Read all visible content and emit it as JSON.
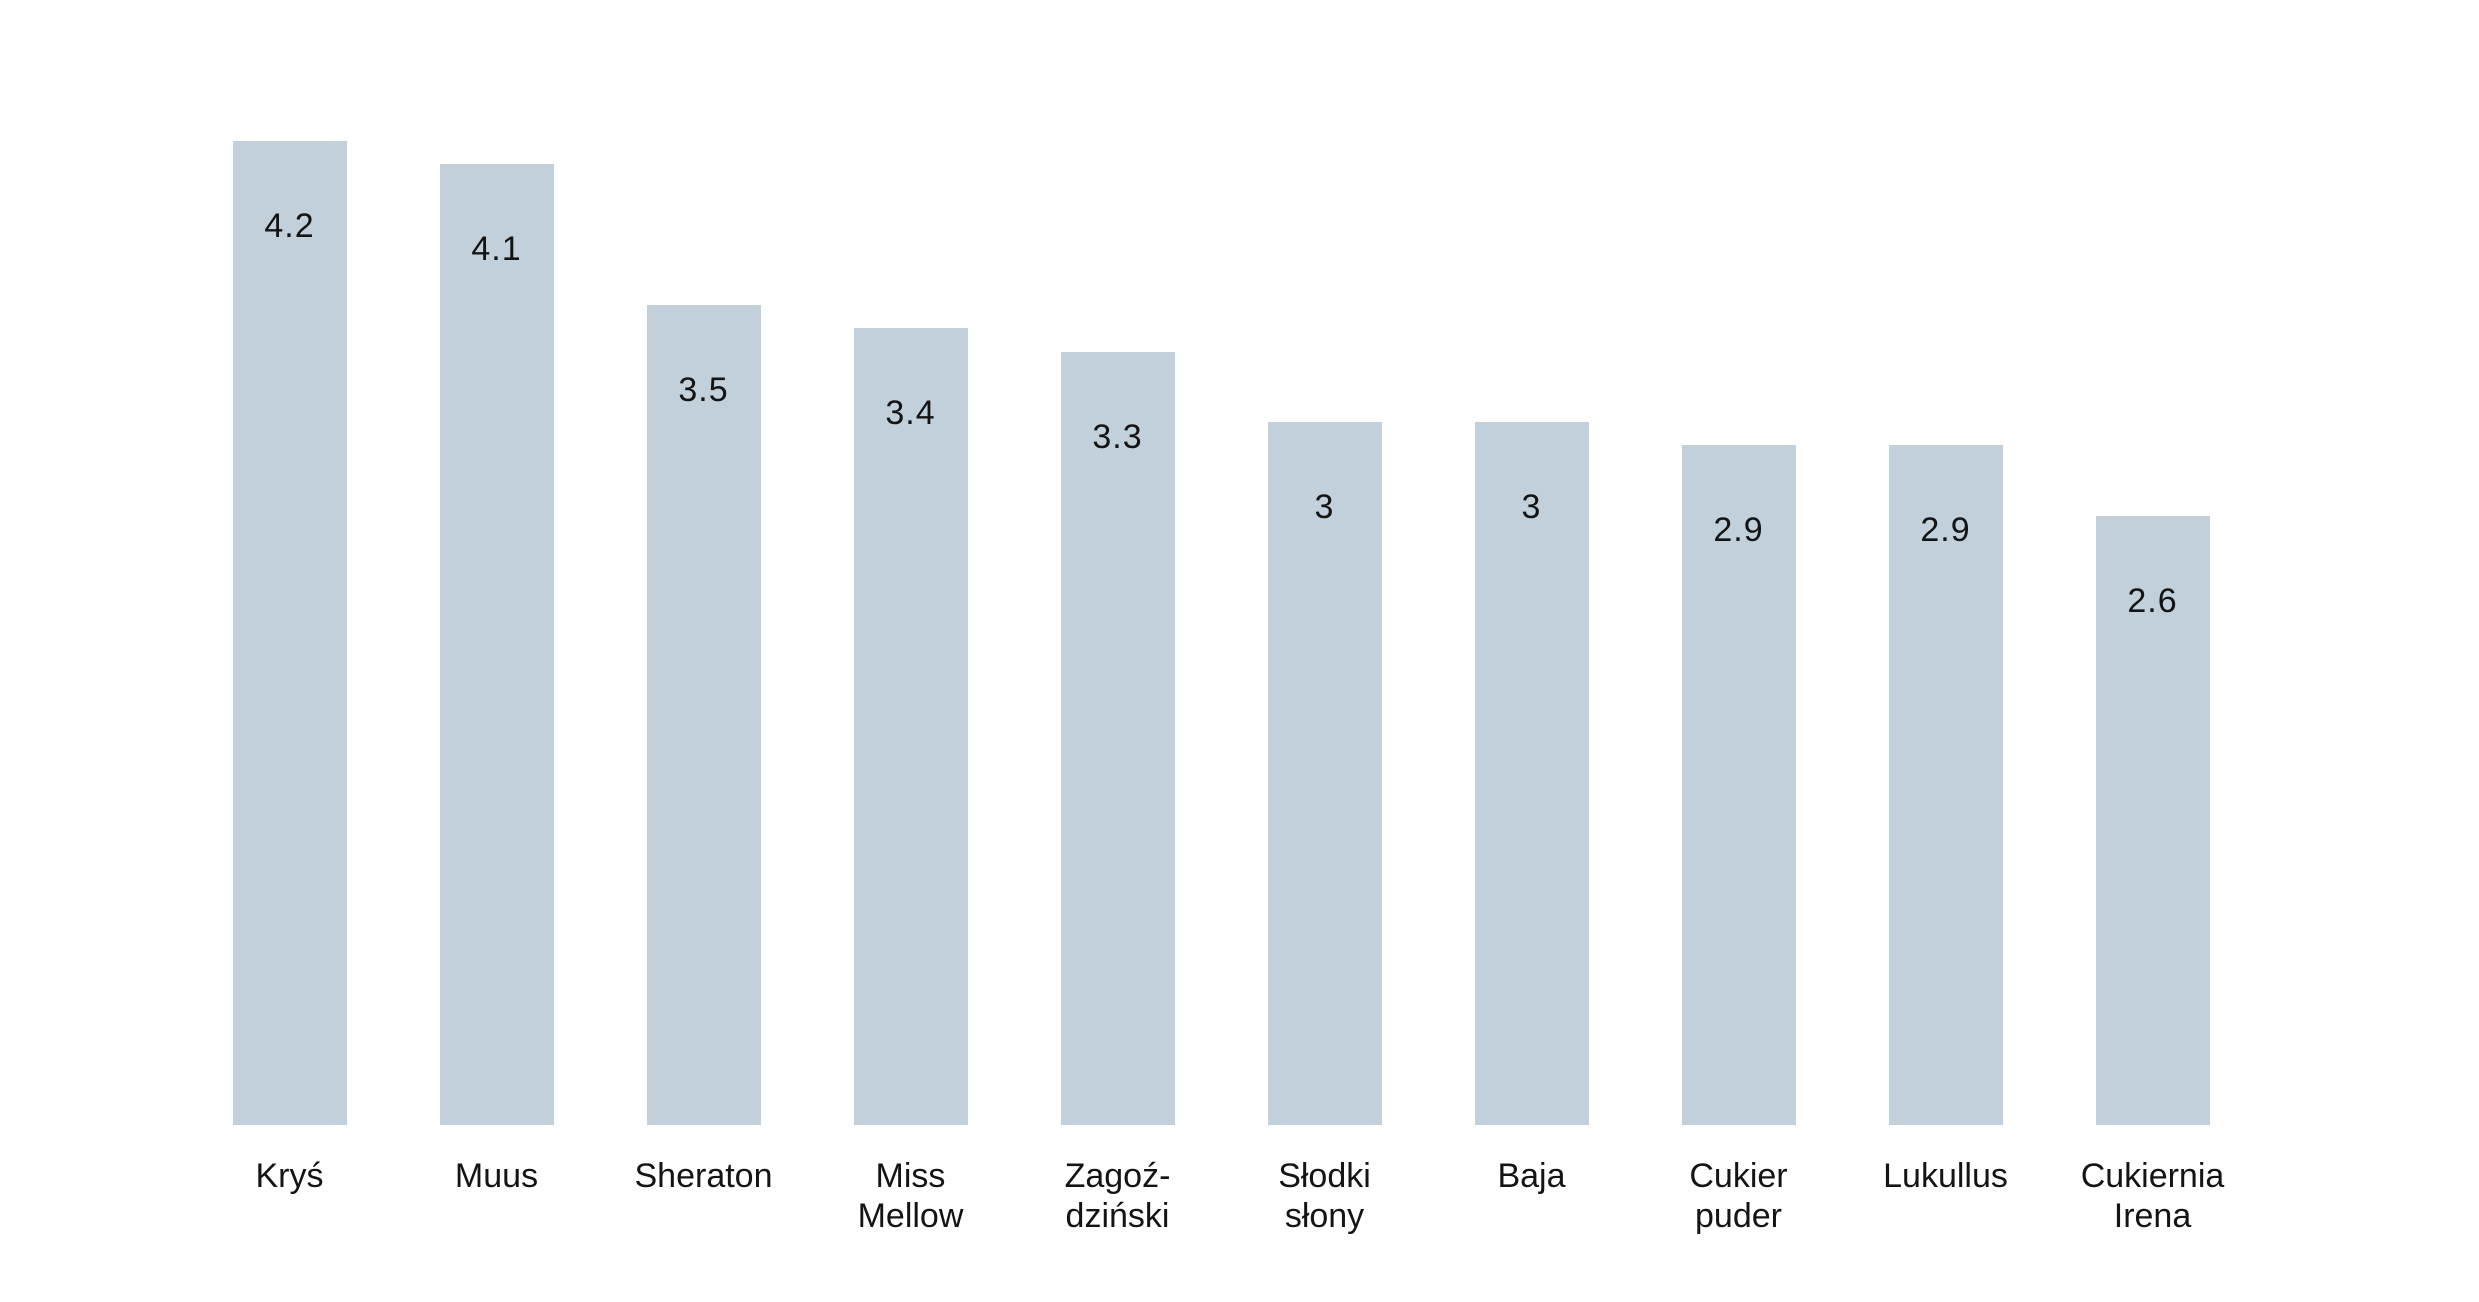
{
  "chart_data": {
    "type": "bar",
    "categories": [
      "Kryś",
      "Muus",
      "Sheraton",
      "Miss\nMellow",
      "Zagoź-\ndziński",
      "Słodki\nsłony",
      "Baja",
      "Cukier\npuder",
      "Lukullus",
      "Cukiernia\nIrena"
    ],
    "values": [
      4.2,
      4.1,
      3.5,
      3.4,
      3.3,
      3,
      3,
      2.9,
      2.9,
      2.6
    ],
    "title": "",
    "xlabel": "",
    "ylabel": "",
    "ylim": [
      0,
      4.8
    ],
    "grid": false,
    "legend": false,
    "value_labels_position": "inside-top",
    "bar_color": "#c1d0da",
    "text_color": "#141414",
    "background_color": "#ffffff"
  }
}
